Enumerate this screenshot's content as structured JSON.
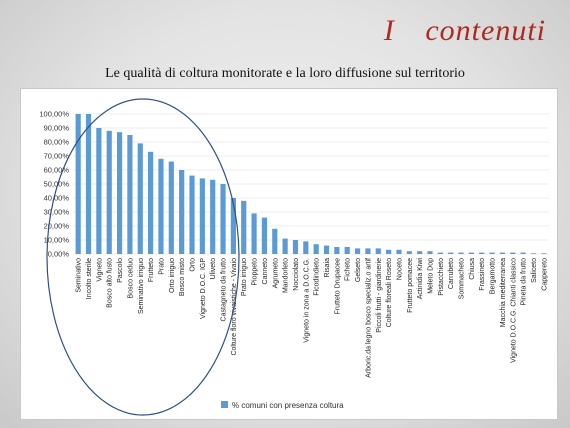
{
  "slide": {
    "title": "I contenuti",
    "subtitle": "Le qualità di coltura monitorate e la loro diffusione sul territorio"
  },
  "colors": {
    "bar": "#5b9bd5",
    "title": "#b0291f",
    "ellipse": "#2f4f86"
  },
  "chart_data": {
    "type": "bar",
    "title": "",
    "xlabel": "",
    "ylabel": "",
    "ylim": [
      0,
      100
    ],
    "ytick_labels": [
      "0,00%",
      "10,00%",
      "20,00%",
      "30,00%",
      "40,00%",
      "50,00%",
      "60,00%",
      "70,00%",
      "80,00%",
      "90,00%",
      "100,00%"
    ],
    "grid": true,
    "legend": "bottom-left",
    "categories": [
      "Seminativo",
      "Incolto sterile",
      "Vigneto",
      "Bosco alto fusto",
      "Pascolo",
      "Bosco ceduo",
      "Seminativo irriguo",
      "Frutteto",
      "Prato",
      "Orto irriguo",
      "Bosco misto",
      "Orto",
      "Vigneto D.O.C. IGP",
      "Uliveto",
      "Castagneto da frutto",
      "Colture floro vivaistiche - Vivaio",
      "Prato irriguo",
      "Pioppeto",
      "Canneto",
      "Agrumeto",
      "Mandorleto",
      "Nocciolato",
      "Vigneto in zona a D.O.C.G.",
      "Ficodindieto",
      "Risaia",
      "Frutteto Drupacee",
      "Ficheto",
      "Gelseto",
      "Arboric.da legno bosco specializ.o artif",
      "Piccoli frutti - giardinerie",
      "Colture floreali Roseto",
      "Noceto",
      "Frutteto pomacee",
      "Actinidia Kiwi",
      "Meleto Dop",
      "Pistacchieto",
      "Carrubeto",
      "Sommacheto",
      "Chiusa",
      "Frassineto",
      "Bergamotto",
      "Macchia mediterranea",
      "Vigneto D.O.C.G. Chianti classico",
      "Pineta da frutto",
      "Saliceto",
      "Cappereto"
    ],
    "series": [
      {
        "name": "% comuni con presenza coltura",
        "values": [
          100,
          100,
          90,
          88,
          87,
          85,
          79,
          73,
          68,
          66,
          60,
          56,
          54,
          53,
          50,
          40,
          38,
          29,
          26,
          18,
          11,
          10,
          9,
          7,
          6,
          5,
          5,
          4,
          4,
          4,
          3,
          3,
          2,
          2,
          2,
          1,
          1,
          1,
          1,
          1,
          1,
          1,
          1,
          1,
          0.5,
          0.5
        ]
      }
    ]
  }
}
